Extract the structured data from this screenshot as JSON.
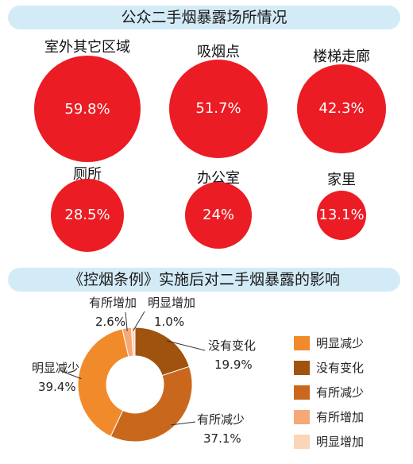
{
  "sections": {
    "places_title": "公众二手烟暴露场所情况",
    "policy_title": "《控烟条例》实施后对二手烟暴露的影响"
  },
  "places": [
    {
      "name": "室外其它区域",
      "pct": 59.8,
      "value_label": "59.8%"
    },
    {
      "name": "吸烟点",
      "pct": 51.7,
      "value_label": "51.7%"
    },
    {
      "name": "楼梯走廊",
      "pct": 42.3,
      "value_label": "42.3%"
    },
    {
      "name": "厕所",
      "pct": 28.5,
      "value_label": "28.5%"
    },
    {
      "name": "办公室",
      "pct": 24,
      "value_label": "24%"
    },
    {
      "name": "家里",
      "pct": 13.1,
      "value_label": "13.1%"
    }
  ],
  "chart_data": [
    {
      "type": "bubble",
      "title": "公众二手烟暴露场所情况",
      "categories": [
        "室外其它区域",
        "吸烟点",
        "楼梯走廊",
        "厕所",
        "办公室",
        "家里"
      ],
      "values": [
        59.8,
        51.7,
        42.3,
        28.5,
        24,
        13.1
      ],
      "unit": "%",
      "color": "#ec1c24"
    },
    {
      "type": "pie",
      "variant": "donut",
      "title": "《控烟条例》实施后对二手烟暴露的影响",
      "start_angle_deg": 0,
      "direction": "clockwise",
      "slices": [
        {
          "label": "没有变化",
          "value": 19.9,
          "value_label": "19.9%",
          "color": "#a0520f"
        },
        {
          "label": "有所减少",
          "value": 37.1,
          "value_label": "37.1%",
          "color": "#c9681c"
        },
        {
          "label": "明显减少",
          "value": 39.4,
          "value_label": "39.4%",
          "color": "#f08a2b"
        },
        {
          "label": "有所增加",
          "value": 2.6,
          "value_label": "2.6%",
          "color": "#f7a877"
        },
        {
          "label": "明显增加",
          "value": 1.0,
          "value_label": "1.0%",
          "color": "#fbd5b5"
        }
      ],
      "legend": {
        "position": "right",
        "items": [
          {
            "label": "明显减少",
            "color": "#f08a2b"
          },
          {
            "label": "没有变化",
            "color": "#a0520f"
          },
          {
            "label": "有所减少",
            "color": "#c9681c"
          },
          {
            "label": "有所增加",
            "color": "#f7a877"
          },
          {
            "label": "明显增加",
            "color": "#fbd5b5"
          }
        ]
      }
    }
  ]
}
